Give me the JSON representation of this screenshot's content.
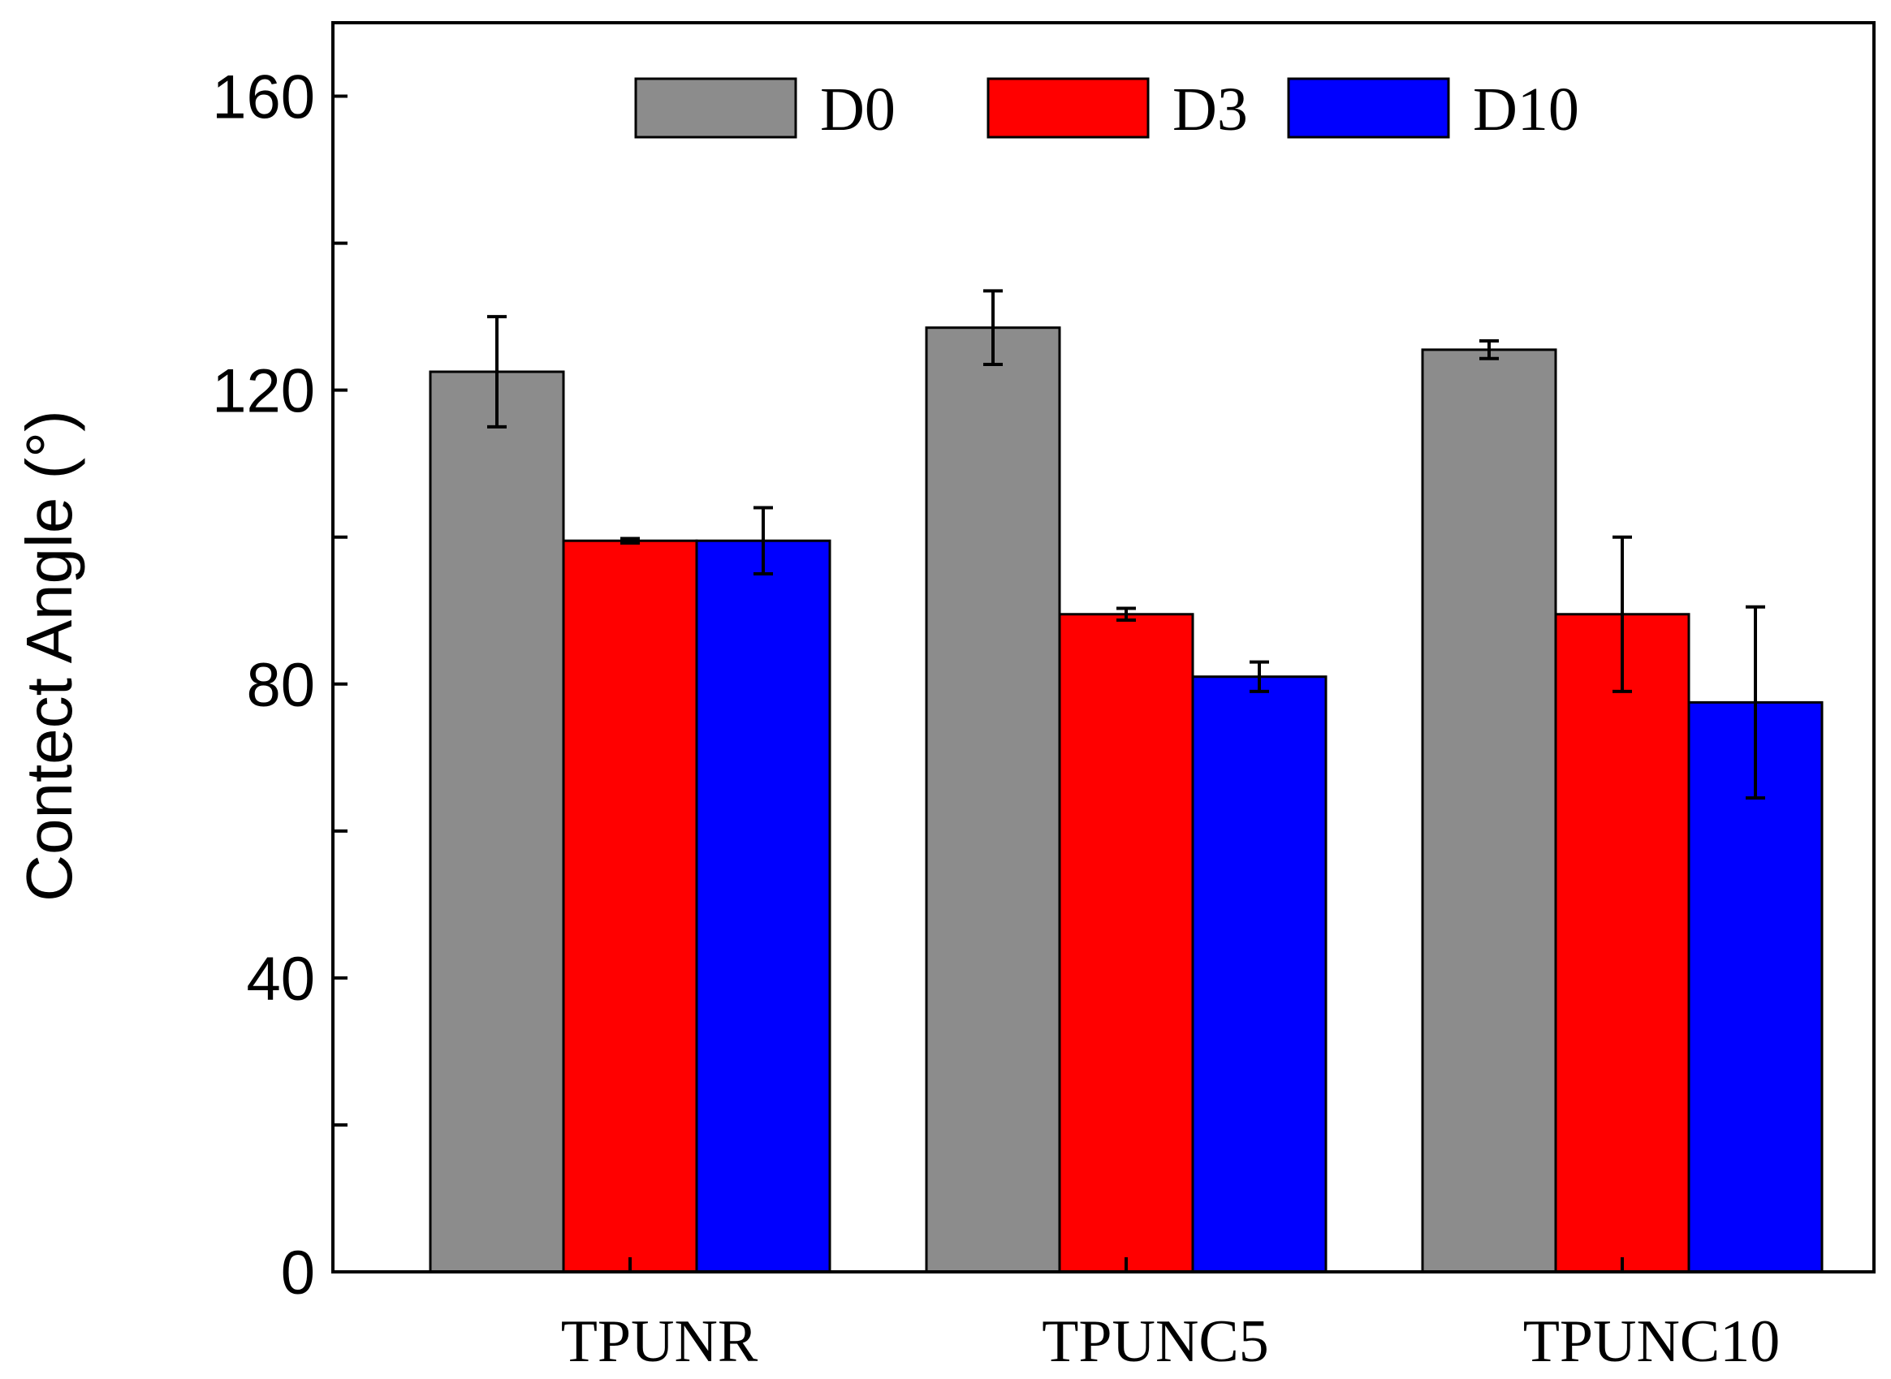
{
  "chart_data": {
    "type": "bar",
    "title": "",
    "xlabel": "",
    "ylabel": "Contect Angle (°)",
    "ylim": [
      0,
      170
    ],
    "yticks": [
      0,
      40,
      80,
      120,
      160
    ],
    "categories": [
      "TPUNR",
      "TPUNC5",
      "TPUNC10"
    ],
    "series": [
      {
        "name": "D0",
        "color": "#8c8c8c",
        "values": [
          122.5,
          128.5,
          125.5
        ],
        "errors": [
          7.5,
          5.0,
          1.2
        ]
      },
      {
        "name": "D3",
        "color": "#ff0000",
        "values": [
          99.5,
          89.5,
          89.5
        ],
        "errors": [
          0.3,
          0.8,
          10.5
        ]
      },
      {
        "name": "D10",
        "color": "#0000ff",
        "values": [
          99.5,
          81.0,
          77.5
        ],
        "errors": [
          4.5,
          2.0,
          13.0
        ]
      }
    ],
    "legend": {
      "placement": "top-center"
    },
    "grid": false
  }
}
